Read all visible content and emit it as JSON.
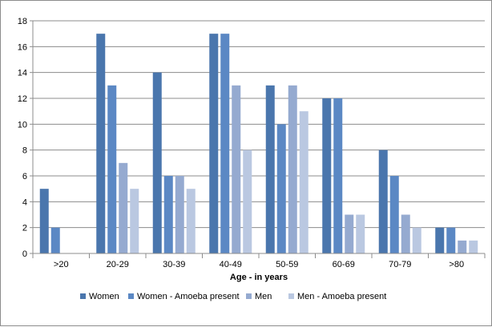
{
  "chart_data": {
    "type": "bar",
    "categories": [
      ">20",
      "20-29",
      "30-39",
      "40-49",
      "50-59",
      "60-69",
      "70-79",
      ">80"
    ],
    "series": [
      {
        "name": "Women",
        "values": [
          5,
          17,
          14,
          17,
          13,
          12,
          8,
          2
        ],
        "color": "#4a76ad"
      },
      {
        "name": "Women - Amoeba present",
        "values": [
          2,
          13,
          6,
          17,
          10,
          12,
          6,
          2
        ],
        "color": "#5b88c4"
      },
      {
        "name": "Men",
        "values": [
          0,
          7,
          6,
          13,
          13,
          3,
          3,
          1
        ],
        "color": "#95aad0"
      },
      {
        "name": "Men - Amoeba present",
        "values": [
          0,
          5,
          5,
          8,
          11,
          3,
          2,
          1
        ],
        "color": "#bac8e1"
      }
    ],
    "title": "",
    "xlabel": "Age - in years",
    "ylabel": "",
    "ylim": [
      0,
      18
    ],
    "yticks": [
      0,
      2,
      4,
      6,
      8,
      10,
      12,
      14,
      16,
      18
    ],
    "grid": true,
    "legend": "bottom"
  }
}
